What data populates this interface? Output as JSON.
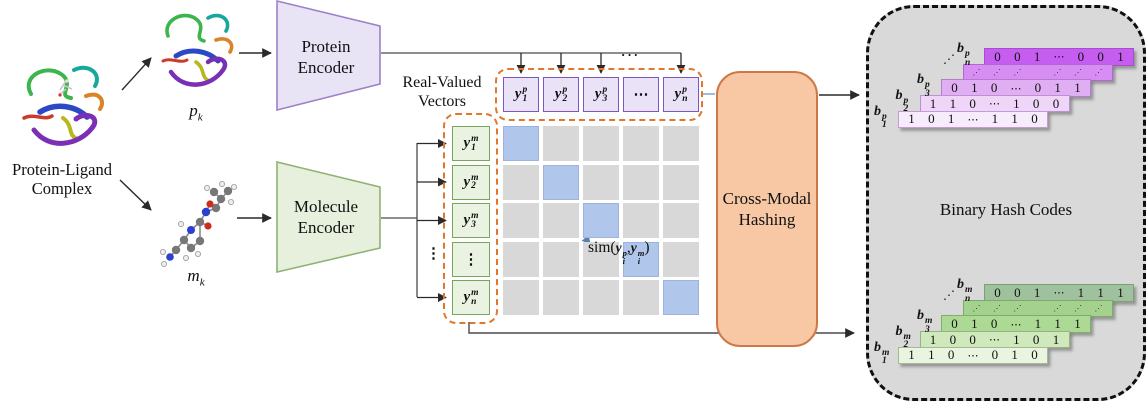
{
  "left": {
    "complex_label": [
      "Protein-Ligand",
      "Complex"
    ],
    "protein_instance": {
      "base": "p",
      "sub": "k"
    },
    "molecule_instance": {
      "base": "m",
      "sub": "k"
    }
  },
  "encoders": {
    "protein": [
      "Protein",
      "Encoder"
    ],
    "molecule": [
      "Molecule",
      "Encoder"
    ]
  },
  "vectors": {
    "caption": [
      "Real-Valued",
      "Vectors"
    ],
    "base": "y",
    "top_ellipsis": "···",
    "outer_vdots": "⋮",
    "protein": {
      "sup": "p",
      "items": [
        "1",
        "2",
        "3",
        "⋯",
        "n"
      ]
    },
    "molecule": {
      "sup": "m",
      "items": [
        "1",
        "2",
        "3",
        "⋮",
        "n"
      ]
    }
  },
  "matrix": {
    "rows": 5,
    "cols": 5,
    "highlight_diagonal": [
      0,
      1,
      2,
      3,
      4
    ],
    "cell_gray": "#d8d8d8",
    "cell_blue": "#b0c6ea",
    "cell_blue_border": "#9cb3e0"
  },
  "sim": {
    "fn": "sim",
    "open": "(",
    "base": "y",
    "arg1_sup": "p",
    "arg1_sub": "i",
    "sep": ",",
    "arg2_sup": "m",
    "arg2_sub": "i",
    "close": ")"
  },
  "hashing": {
    "label": [
      "Cross-Modal",
      "Hashing"
    ]
  },
  "hash_codes": {
    "title": "Binary Hash Codes",
    "base": "b",
    "stacks": [
      {
        "id": "protein",
        "sup": "p",
        "label_dots": "⋰",
        "border": "rgba(128,60,160,0.45)",
        "rows": [
          {
            "sub": "1",
            "bits": [
              "1",
              "0",
              "1",
              "⋯",
              "1",
              "1",
              "0"
            ],
            "fill": "#f7ecfb"
          },
          {
            "sub": "2",
            "bits": [
              "1",
              "1",
              "0",
              "⋯",
              "1",
              "0",
              "0"
            ],
            "fill": "#efd6f9"
          },
          {
            "sub": "3",
            "bits": [
              "0",
              "1",
              "0",
              "⋯",
              "0",
              "1",
              "1"
            ],
            "fill": "#e0aff3"
          },
          {
            "sub": "",
            "bits": [
              "⋰",
              "⋰",
              "⋰",
              "",
              "⋰",
              "⋰",
              "⋰"
            ],
            "fill": "#d78df3",
            "is_dots": true
          },
          {
            "sub": "n",
            "bits": [
              "0",
              "0",
              "1",
              "⋯",
              "0",
              "0",
              "1"
            ],
            "fill": "#c55ef0"
          }
        ]
      },
      {
        "id": "molecule",
        "sup": "m",
        "label_dots": "⋰",
        "border": "rgba(90,130,70,0.5)",
        "rows": [
          {
            "sub": "1",
            "bits": [
              "1",
              "1",
              "0",
              "⋯",
              "0",
              "1",
              "0"
            ],
            "fill": "#e9f5e0"
          },
          {
            "sub": "2",
            "bits": [
              "1",
              "0",
              "0",
              "⋯",
              "1",
              "0",
              "1"
            ],
            "fill": "#cfe9bc"
          },
          {
            "sub": "3",
            "bits": [
              "0",
              "1",
              "0",
              "⋯",
              "1",
              "1",
              "1"
            ],
            "fill": "#acd994"
          },
          {
            "sub": "",
            "bits": [
              "⋰",
              "⋰",
              "⋰",
              "",
              "⋰",
              "⋰",
              "⋰"
            ],
            "fill": "#a4d18e",
            "is_dots": true
          },
          {
            "sub": "n",
            "bits": [
              "0",
              "0",
              "1",
              "⋯",
              "1",
              "1",
              "1"
            ],
            "fill": "#9fc19d"
          }
        ]
      }
    ]
  },
  "colors": {
    "orange_dash": "#e2762d",
    "encoder_purple_fill": "#e9e3f6",
    "encoder_purple_border": "#9d80c9",
    "encoder_green_fill": "#e6f0dd",
    "encoder_green_border": "#90b275",
    "hashing_fill": "#f7c8a3",
    "hashing_border": "#cf7847",
    "hash_container_fill": "#d9d9d9"
  }
}
